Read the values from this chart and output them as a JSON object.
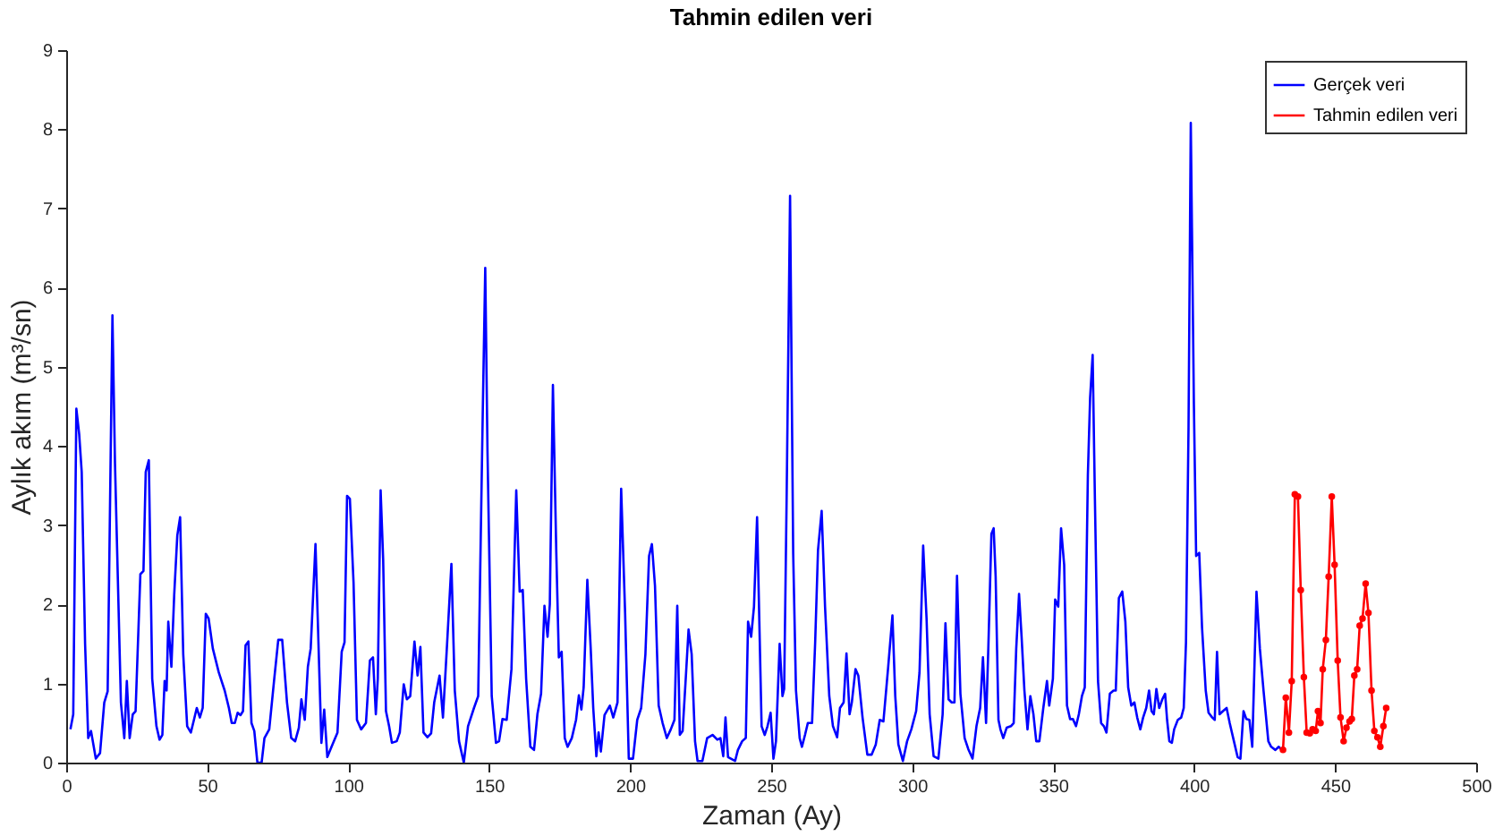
{
  "chart_data": {
    "type": "line",
    "title": "Tahmin edilen veri",
    "xlabel": "Zaman (Ay)",
    "ylabel": "Aylık akım (m³/sn)",
    "xlim": [
      0,
      500
    ],
    "xticks": [
      0,
      50,
      100,
      150,
      200,
      250,
      300,
      350,
      400,
      450,
      500
    ],
    "ylim": [
      0,
      9
    ],
    "yticks": [
      0,
      1,
      2,
      3,
      4,
      5,
      6,
      7,
      8,
      9
    ],
    "legend": "top right",
    "series": [
      {
        "name": "Gerçek veri",
        "color": "#0000ff",
        "marker": "none",
        "x": [
          1.5,
          2.5,
          3.6,
          4.6,
          5.5,
          6.7,
          7.8,
          8.8,
          10.5,
          12,
          13.5,
          14.7,
          16.4,
          17.3,
          19.4,
          20.6,
          21.5,
          22.5,
          23.6,
          24.6,
          26.3,
          27.4,
          28.2,
          29.3,
          30.5,
          32,
          33.1,
          34.1,
          34.9,
          35.6,
          36.2,
          37.3,
          38.3,
          39.4,
          40.4,
          41.5,
          42.9,
          44.2,
          45.3,
          46.3,
          47.4,
          48.4,
          49.5,
          50.5,
          52,
          54.1,
          56.2,
          57.7,
          58.7,
          59.8,
          60.8,
          61.8,
          62.7,
          63.6,
          64.6,
          65.7,
          66.7,
          67.8,
          69.3,
          70.3,
          72,
          73.7,
          75.2,
          76.6,
          78.3,
          79.8,
          81.2,
          82.5,
          83.4,
          84.6,
          85.7,
          86.7,
          88.4,
          89.2,
          90.5,
          91.5,
          92.6,
          94.1,
          96.2,
          97.7,
          98.7,
          99.6,
          100.6,
          101.9,
          103.1,
          104.6,
          106.3,
          107.7,
          108.8,
          109.8,
          110.5,
          111.5,
          112.4,
          113.4,
          114.5,
          115.5,
          117.2,
          118.3,
          119.7,
          120.8,
          122,
          123.5,
          124.6,
          125.6,
          126.7,
          128.1,
          129.4,
          130.5,
          132.4,
          133.6,
          135.1,
          136.6,
          137.8,
          139.3,
          141,
          142.5,
          144.6,
          146.1,
          147.7,
          148.6,
          149.4,
          150.9,
          152.4,
          153.5,
          154.7,
          156.2,
          157.9,
          159.6,
          160.8,
          161.9,
          163.1,
          164.6,
          165.9,
          167.1,
          168.4,
          169.6,
          170.7,
          171.5,
          172.6,
          173.8,
          174.7,
          175.7,
          176.8,
          177.8,
          179.3,
          180.8,
          181.8,
          182.7,
          183.5,
          184.8,
          186,
          186.9,
          188,
          188.8,
          189.6,
          190.9,
          192.8,
          194,
          195.5,
          196.8,
          198.2,
          199.5,
          201,
          202.5,
          203.9,
          205.4,
          206.7,
          207.7,
          208.8,
          210.1,
          211.5,
          213,
          214.4,
          215.7,
          216.7,
          217.6,
          218.6,
          219.7,
          220.7,
          221.8,
          223,
          223.9,
          225.6,
          227.3,
          229.2,
          230.9,
          232,
          233,
          233.8,
          234.7,
          237.2,
          238.2,
          239.7,
          241,
          241.8,
          242.9,
          243.9,
          245,
          246.6,
          247.7,
          248.7,
          249.8,
          250.8,
          251.7,
          253,
          254,
          254.6,
          255.5,
          256.7,
          257.8,
          258.8,
          260.1,
          260.9,
          262,
          263,
          264.5,
          265.6,
          266.6,
          267.9,
          269.1,
          270.6,
          271.9,
          273.4,
          274.4,
          275.7,
          276.7,
          277.8,
          278.6,
          279.9,
          280.9,
          282.4,
          284.1,
          285.6,
          287.1,
          288.5,
          289.8,
          291.5,
          293,
          294,
          295.1,
          296.7,
          298.2,
          299.7,
          301.4,
          302.6,
          303.9,
          305.1,
          306.2,
          307.6,
          309.3,
          310.8,
          311.8,
          312.9,
          314,
          315,
          315.9,
          317.1,
          318.6,
          319.9,
          321.4,
          322.8,
          324.1,
          325.1,
          326.2,
          327,
          328.1,
          328.9,
          329.6,
          330.6,
          331.3,
          332.3,
          333.5,
          335,
          336,
          336.9,
          337.9,
          338.8,
          339.8,
          340.9,
          341.9,
          343,
          344,
          345.1,
          346.5,
          347.8,
          348.6,
          349.9,
          350.7,
          351.8,
          352.8,
          353.9,
          354.9,
          356,
          357,
          358.1,
          359.1,
          360.2,
          361.2,
          362.3,
          363.1,
          364,
          364.8,
          365.9,
          367,
          368,
          368.9,
          370.1,
          371.4,
          372.2,
          373.3,
          374.5,
          375.6,
          376.6,
          377.7,
          378.8,
          379.8,
          380.9,
          381.9,
          383,
          384,
          384.9,
          385.7,
          386.6,
          387.6,
          388.7,
          389.7,
          390.4,
          391.2,
          392.1,
          392.9,
          394.2,
          395.4,
          396.3,
          397.1,
          398,
          398.8,
          399.9,
          400.7,
          401.8,
          402.8,
          404.1,
          405.1,
          406.4,
          407.3,
          408.1,
          409,
          410.2,
          411.5,
          412.6,
          414.1,
          415.4,
          416.4,
          417.5,
          418.5,
          419.6,
          420.6,
          422.1,
          423.3,
          424.6,
          426.3,
          427.3,
          428.8,
          430,
          431.1
        ],
        "values": [
          0.42,
          0.61,
          4.47,
          4.15,
          3.67,
          1.5,
          0.31,
          0.4,
          0.05,
          0.12,
          0.76,
          0.9,
          5.65,
          3.78,
          0.76,
          0.31,
          1.03,
          0.31,
          0.61,
          0.65,
          2.38,
          2.42,
          3.67,
          3.82,
          1.06,
          0.46,
          0.29,
          0.35,
          1.03,
          0.91,
          1.78,
          1.21,
          2.12,
          2.87,
          3.1,
          1.37,
          0.46,
          0.38,
          0.54,
          0.69,
          0.57,
          0.69,
          1.88,
          1.82,
          1.44,
          1.14,
          0.91,
          0.69,
          0.5,
          0.5,
          0.63,
          0.6,
          0.65,
          1.48,
          1.53,
          0.5,
          0.4,
          0,
          0,
          0.31,
          0.42,
          1.03,
          1.55,
          1.55,
          0.76,
          0.31,
          0.27,
          0.44,
          0.8,
          0.54,
          1.21,
          1.44,
          2.76,
          1.82,
          0.25,
          0.67,
          0.07,
          0.2,
          0.38,
          1.4,
          1.52,
          3.37,
          3.33,
          2.27,
          0.54,
          0.42,
          0.5,
          1.29,
          1.33,
          0.61,
          1.06,
          3.44,
          2.57,
          0.65,
          0.46,
          0.25,
          0.27,
          0.38,
          0.99,
          0.8,
          0.84,
          1.53,
          1.1,
          1.46,
          0.38,
          0.32,
          0.37,
          0.76,
          1.1,
          0.57,
          1.52,
          2.51,
          0.91,
          0.27,
          0,
          0.46,
          0.69,
          0.84,
          4.38,
          6.25,
          3.93,
          0.84,
          0.25,
          0.27,
          0.55,
          0.54,
          1.18,
          3.44,
          2.16,
          2.18,
          1.06,
          0.2,
          0.16,
          0.61,
          0.87,
          1.98,
          1.59,
          2.0,
          4.77,
          2.65,
          1.33,
          1.4,
          0.31,
          0.2,
          0.31,
          0.54,
          0.85,
          0.67,
          0.95,
          2.31,
          1.44,
          0.69,
          0.08,
          0.38,
          0.14,
          0.6,
          0.72,
          0.57,
          0.76,
          3.46,
          1.89,
          0.05,
          0.05,
          0.54,
          0.69,
          1.37,
          2.61,
          2.76,
          2.23,
          0.72,
          0.5,
          0.31,
          0.42,
          0.54,
          1.98,
          0.35,
          0.4,
          1.06,
          1.68,
          1.37,
          0.27,
          0.02,
          0.02,
          0.31,
          0.35,
          0.29,
          0.31,
          0.08,
          0.57,
          0.07,
          0.02,
          0.16,
          0.27,
          0.31,
          1.78,
          1.59,
          1.97,
          3.1,
          0.46,
          0.35,
          0.46,
          0.63,
          0.05,
          0.27,
          1.5,
          0.84,
          0.93,
          3.4,
          7.16,
          2.65,
          0.91,
          0.31,
          0.2,
          0.35,
          0.5,
          0.5,
          1.52,
          2.68,
          3.18,
          1.97,
          0.84,
          0.46,
          0.32,
          0.69,
          0.76,
          1.38,
          0.61,
          0.76,
          1.18,
          1.1,
          0.57,
          0.1,
          0.1,
          0.23,
          0.54,
          0.52,
          1.21,
          1.86,
          0.84,
          0.23,
          0.02,
          0.27,
          0.42,
          0.65,
          1.14,
          2.74,
          1.82,
          0.61,
          0.08,
          0.05,
          0.61,
          1.76,
          0.8,
          0.76,
          0.76,
          2.36,
          0.87,
          0.31,
          0.17,
          0.05,
          0.46,
          0.69,
          1.33,
          0.5,
          1.44,
          2.89,
          2.96,
          2.35,
          0.54,
          0.42,
          0.31,
          0.44,
          0.46,
          0.5,
          1.44,
          2.13,
          1.59,
          0.91,
          0.42,
          0.84,
          0.61,
          0.27,
          0.27,
          0.69,
          1.03,
          0.72,
          1.06,
          2.06,
          1.97,
          2.96,
          2.5,
          0.72,
          0.55,
          0.55,
          0.46,
          0.61,
          0.84,
          0.95,
          3.63,
          4.61,
          5.15,
          3.33,
          1.03,
          0.5,
          0.46,
          0.38,
          0.87,
          0.91,
          0.91,
          2.08,
          2.16,
          1.78,
          0.95,
          0.72,
          0.76,
          0.57,
          0.42,
          0.57,
          0.69,
          0.91,
          0.65,
          0.61,
          0.93,
          0.69,
          0.8,
          0.87,
          0.54,
          0.27,
          0.25,
          0.42,
          0.54,
          0.57,
          0.69,
          1.52,
          4.23,
          8.08,
          4.53,
          2.61,
          2.65,
          1.7,
          0.91,
          0.63,
          0.57,
          0.54,
          1.4,
          0.61,
          0.65,
          0.69,
          0.5,
          0.27,
          0.07,
          0.05,
          0.65,
          0.55,
          0.54,
          0.2,
          2.16,
          1.44,
          0.91,
          0.27,
          0.2,
          0.16,
          0.2,
          0.16
        ]
      },
      {
        "name": "Tahmin edilen veri",
        "color": "#ff0000",
        "marker": "circle",
        "x": [
          431.5,
          432.5,
          433.6,
          434.6,
          435.7,
          436.8,
          437.8,
          438.9,
          439.9,
          441,
          442,
          443.1,
          443.9,
          444.8,
          445.6,
          446.7,
          447.7,
          448.8,
          449.8,
          450.9,
          451.9,
          453,
          454,
          455.1,
          455.9,
          456.8,
          457.8,
          458.7,
          459.7,
          460.8,
          461.8,
          462.9,
          463.9,
          465,
          466,
          467.1,
          468.1
        ],
        "values": [
          0.16,
          0.82,
          0.38,
          1.03,
          3.39,
          3.36,
          2.18,
          1.08,
          0.38,
          0.37,
          0.42,
          0.4,
          0.65,
          0.5,
          1.18,
          1.55,
          2.35,
          3.36,
          2.5,
          1.29,
          0.57,
          0.27,
          0.44,
          0.52,
          0.55,
          1.1,
          1.18,
          1.73,
          1.82,
          2.26,
          1.89,
          0.91,
          0.4,
          0.32,
          0.2,
          0.46,
          0.69
        ]
      }
    ]
  }
}
